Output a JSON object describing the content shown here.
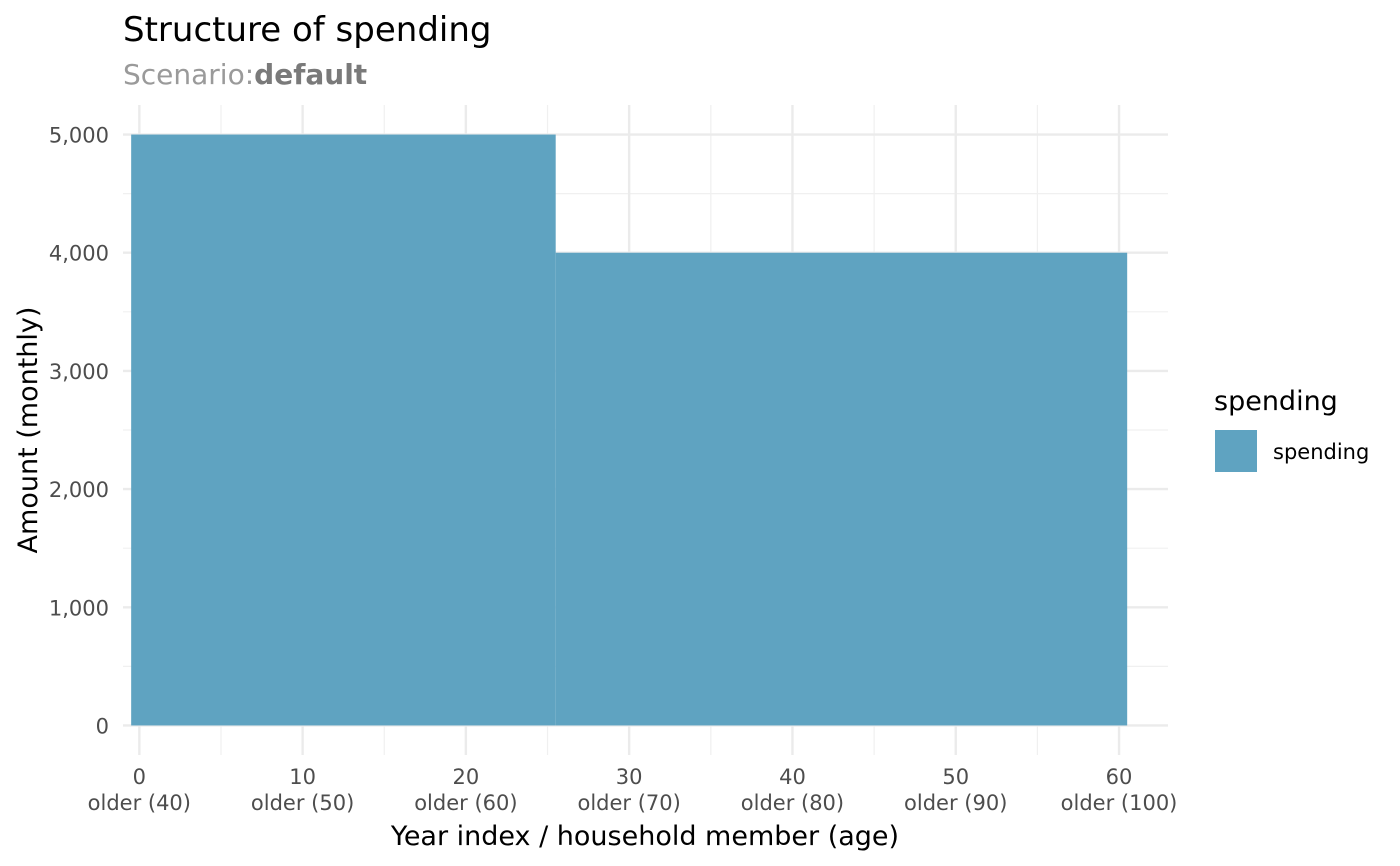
{
  "chart_data": {
    "type": "area",
    "title": "Structure of spending",
    "subtitle_label": "Scenario:",
    "subtitle_value": "default",
    "xlabel": "Year index / household member (age)",
    "ylabel": "Amount (monthly)",
    "xlim": [
      -1,
      63
    ],
    "ylim": [
      -250,
      5250
    ],
    "x_ticks": [
      {
        "value": 0,
        "line1": "0",
        "line2": "older (40)"
      },
      {
        "value": 10,
        "line1": "10",
        "line2": "older (50)"
      },
      {
        "value": 20,
        "line1": "20",
        "line2": "older (60)"
      },
      {
        "value": 30,
        "line1": "30",
        "line2": "older (70)"
      },
      {
        "value": 40,
        "line1": "40",
        "line2": "older (80)"
      },
      {
        "value": 50,
        "line1": "50",
        "line2": "older (90)"
      },
      {
        "value": 60,
        "line1": "60",
        "line2": "older (100)"
      }
    ],
    "y_ticks": [
      {
        "value": 0,
        "label": "0"
      },
      {
        "value": 1000,
        "label": "1,000"
      },
      {
        "value": 2000,
        "label": "2,000"
      },
      {
        "value": 3000,
        "label": "3,000"
      },
      {
        "value": 4000,
        "label": "4,000"
      },
      {
        "value": 5000,
        "label": "5,000"
      }
    ],
    "series": [
      {
        "name": "spending",
        "color": "#5fa3c1",
        "steps": [
          {
            "x_start": -0.5,
            "x_end": 25.5,
            "value": 5000
          },
          {
            "x_start": 25.5,
            "x_end": 60.5,
            "value": 4000
          }
        ]
      }
    ],
    "legend": {
      "title": "spending",
      "position": "right"
    },
    "grid": true
  }
}
